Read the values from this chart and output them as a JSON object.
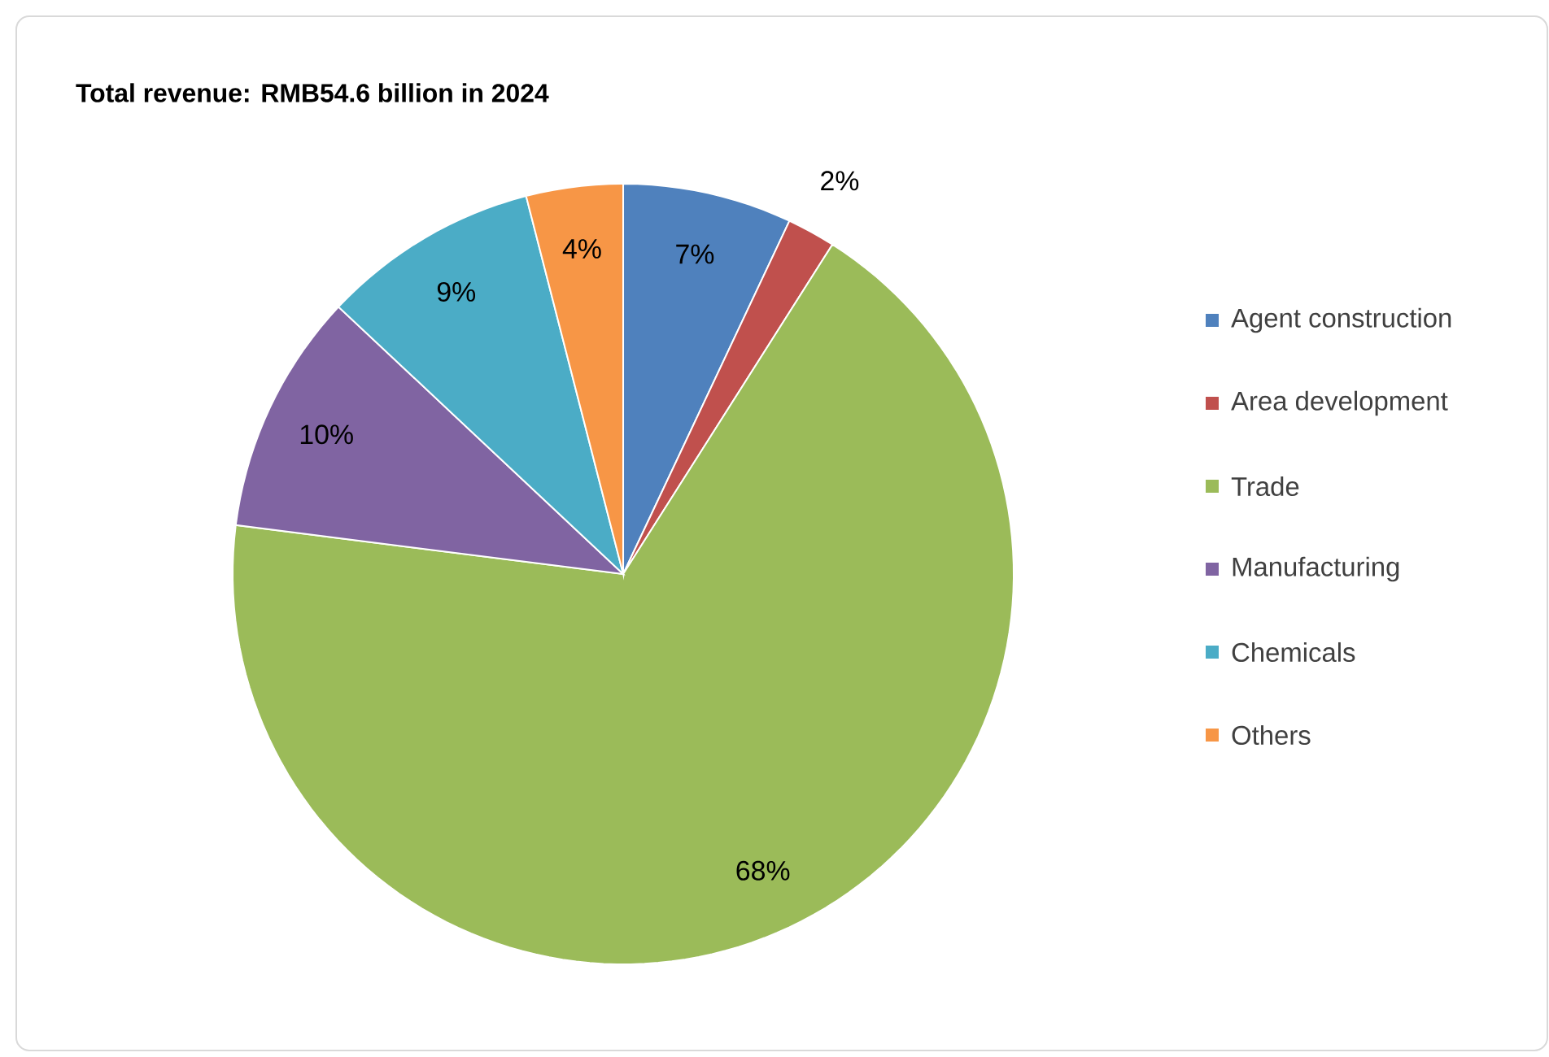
{
  "chart_data": {
    "type": "pie",
    "title": "Total revenue: RMB54.6 billion in 2024",
    "categories": [
      "Agent construction",
      "Area development",
      "Trade",
      "Manufacturing",
      "Chemicals",
      "Others"
    ],
    "values": [
      7,
      2,
      68,
      10,
      9,
      4
    ],
    "value_labels": [
      "7%",
      "2%",
      "68%",
      "10%",
      "9%",
      "4%"
    ],
    "colors": [
      "#4f81bd",
      "#c0504d",
      "#9bbb59",
      "#8064a2",
      "#4bacc6",
      "#f79646"
    ],
    "legend": "right"
  }
}
